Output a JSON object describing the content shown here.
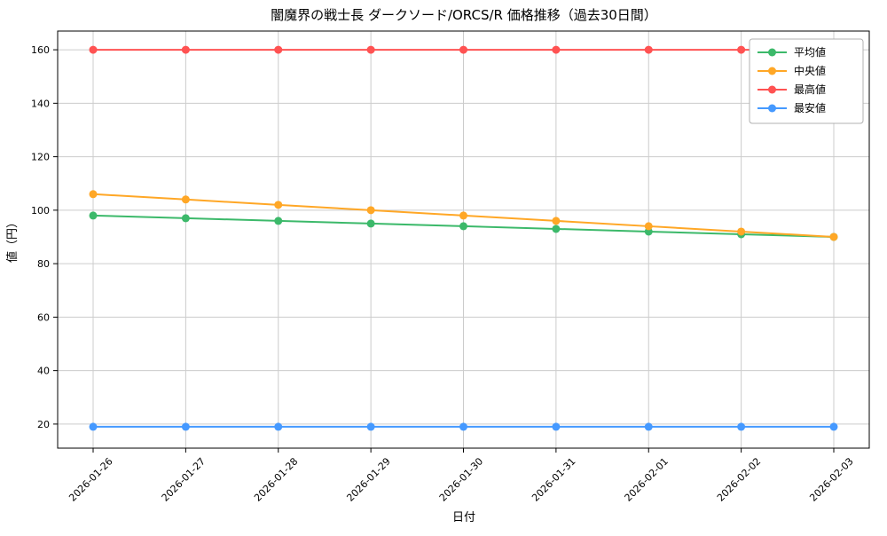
{
  "chart_data": {
    "type": "line",
    "title": "闇魔界の戦士長 ダークソード/ORCS/R 価格推移（過去30日間）",
    "xlabel": "日付",
    "ylabel": "値（円）",
    "x": [
      "2026-01-26",
      "2026-01-27",
      "2026-01-28",
      "2026-01-29",
      "2026-01-30",
      "2026-01-31",
      "2026-02-01",
      "2026-02-02",
      "2026-02-03"
    ],
    "series": [
      {
        "id": "average",
        "name": "平均値",
        "color": "#3cb96a",
        "values": [
          98,
          97,
          96,
          95,
          94,
          93,
          92,
          91,
          90
        ]
      },
      {
        "id": "median",
        "name": "中央値",
        "color": "#ffa726",
        "values": [
          106,
          104,
          102,
          100,
          98,
          96,
          94,
          92,
          90
        ]
      },
      {
        "id": "highest",
        "name": "最高値",
        "color": "#ff5252",
        "values": [
          160,
          160,
          160,
          160,
          160,
          160,
          160,
          160,
          160
        ]
      },
      {
        "id": "lowest",
        "name": "最安値",
        "color": "#4599ff",
        "values": [
          19,
          19,
          19,
          19,
          19,
          19,
          19,
          19,
          19
        ]
      }
    ],
    "yticks": [
      20,
      40,
      60,
      80,
      100,
      120,
      140,
      160
    ],
    "ylim": [
      11,
      167
    ],
    "grid": true,
    "legend_position": "top-right",
    "grid_color": "#cccccc",
    "axis_color": "#000000",
    "legend_border_color": "#b0b0b0"
  }
}
